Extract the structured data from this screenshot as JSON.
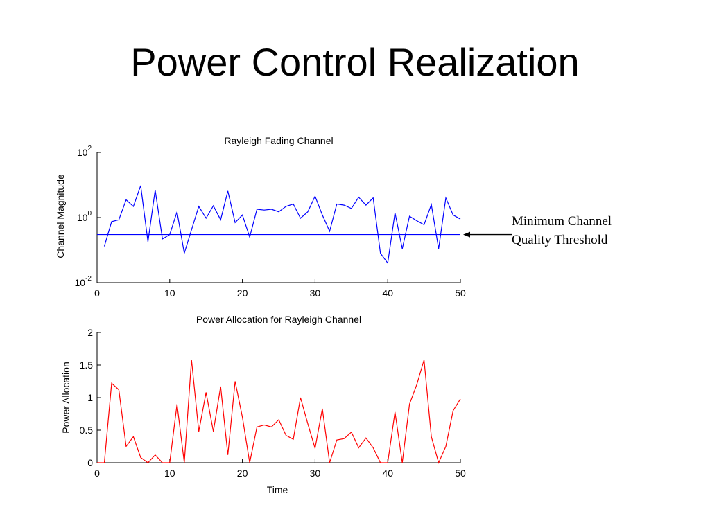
{
  "slide": {
    "title": "Power Control Realization"
  },
  "annotation": {
    "lines": [
      "Minimum Channel",
      "Quality Threshold"
    ],
    "threshold_value": 0.3
  },
  "chart_data": [
    {
      "type": "line",
      "title": "Rayleigh Fading Channel",
      "xlabel": "",
      "ylabel": "Channel Magnitude",
      "yscale": "log",
      "xlim": [
        0,
        50
      ],
      "ylim": [
        0.01,
        100
      ],
      "xticks": [
        0,
        10,
        20,
        30,
        40,
        50
      ],
      "yticks": [
        0.01,
        1,
        100
      ],
      "ytick_labels": [
        {
          "base": "10",
          "exp": "-2"
        },
        {
          "base": "10",
          "exp": "0"
        },
        {
          "base": "10",
          "exp": "2"
        }
      ],
      "grid": false,
      "color": "#0000ff",
      "series": [
        {
          "x": [
            1,
            2,
            3,
            4,
            5,
            6,
            7,
            8,
            9,
            10,
            11,
            12,
            13,
            14,
            15,
            16,
            17,
            18,
            19,
            20,
            21,
            22,
            23,
            24,
            25,
            26,
            27,
            28,
            29,
            30,
            31,
            32,
            33,
            34,
            35,
            36,
            37,
            38,
            39,
            40,
            41,
            42,
            43,
            44,
            45,
            46,
            47,
            48,
            49,
            50
          ],
          "values": [
            0.13,
            0.75,
            0.85,
            3.5,
            2.2,
            9.5,
            0.18,
            7.0,
            0.22,
            0.3,
            1.5,
            0.08,
            0.42,
            2.2,
            0.95,
            2.3,
            0.85,
            6.5,
            0.7,
            1.2,
            0.25,
            1.8,
            1.7,
            1.8,
            1.5,
            2.2,
            2.6,
            0.95,
            1.5,
            4.5,
            1.2,
            0.38,
            2.6,
            2.4,
            1.9,
            4.2,
            2.4,
            4.0,
            0.08,
            0.04,
            1.4,
            0.11,
            1.1,
            0.8,
            0.6,
            2.5,
            0.11,
            4.0,
            1.2,
            0.9
          ]
        }
      ],
      "threshold_line": {
        "value": 0.3,
        "xrange": [
          0,
          50
        ]
      }
    },
    {
      "type": "line",
      "title": "Power Allocation for Rayleigh Channel",
      "xlabel": "Time",
      "ylabel": "Power Allocation",
      "xlim": [
        0,
        50
      ],
      "ylim": [
        0,
        2
      ],
      "xticks": [
        0,
        10,
        20,
        30,
        40,
        50
      ],
      "yticks": [
        0,
        0.5,
        1,
        1.5,
        2
      ],
      "ytick_labels": [
        "0",
        "0.5",
        "1",
        "1.5",
        "2"
      ],
      "grid": false,
      "color": "#ff0000",
      "series": [
        {
          "x": [
            0,
            1,
            2,
            3,
            4,
            5,
            6,
            7,
            8,
            9,
            10,
            11,
            12,
            13,
            14,
            15,
            16,
            17,
            18,
            19,
            20,
            21,
            22,
            23,
            24,
            25,
            26,
            27,
            28,
            29,
            30,
            31,
            32,
            33,
            34,
            35,
            36,
            37,
            38,
            39,
            40,
            41,
            42,
            43,
            44,
            45,
            46,
            47,
            48,
            49,
            50
          ],
          "values": [
            0,
            0,
            1.22,
            1.12,
            0.25,
            0.4,
            0.08,
            0,
            0.12,
            0,
            0,
            0.9,
            0,
            1.58,
            0.48,
            1.08,
            0.48,
            1.17,
            0.12,
            1.25,
            0.7,
            0,
            0.55,
            0.58,
            0.55,
            0.66,
            0.42,
            0.36,
            1.0,
            0.6,
            0.22,
            0.83,
            0,
            0.35,
            0.37,
            0.47,
            0.23,
            0.38,
            0.23,
            0,
            0,
            0.78,
            0,
            0.9,
            1.2,
            1.58,
            0.4,
            0,
            0.25,
            0.8,
            0.98
          ]
        }
      ]
    }
  ]
}
